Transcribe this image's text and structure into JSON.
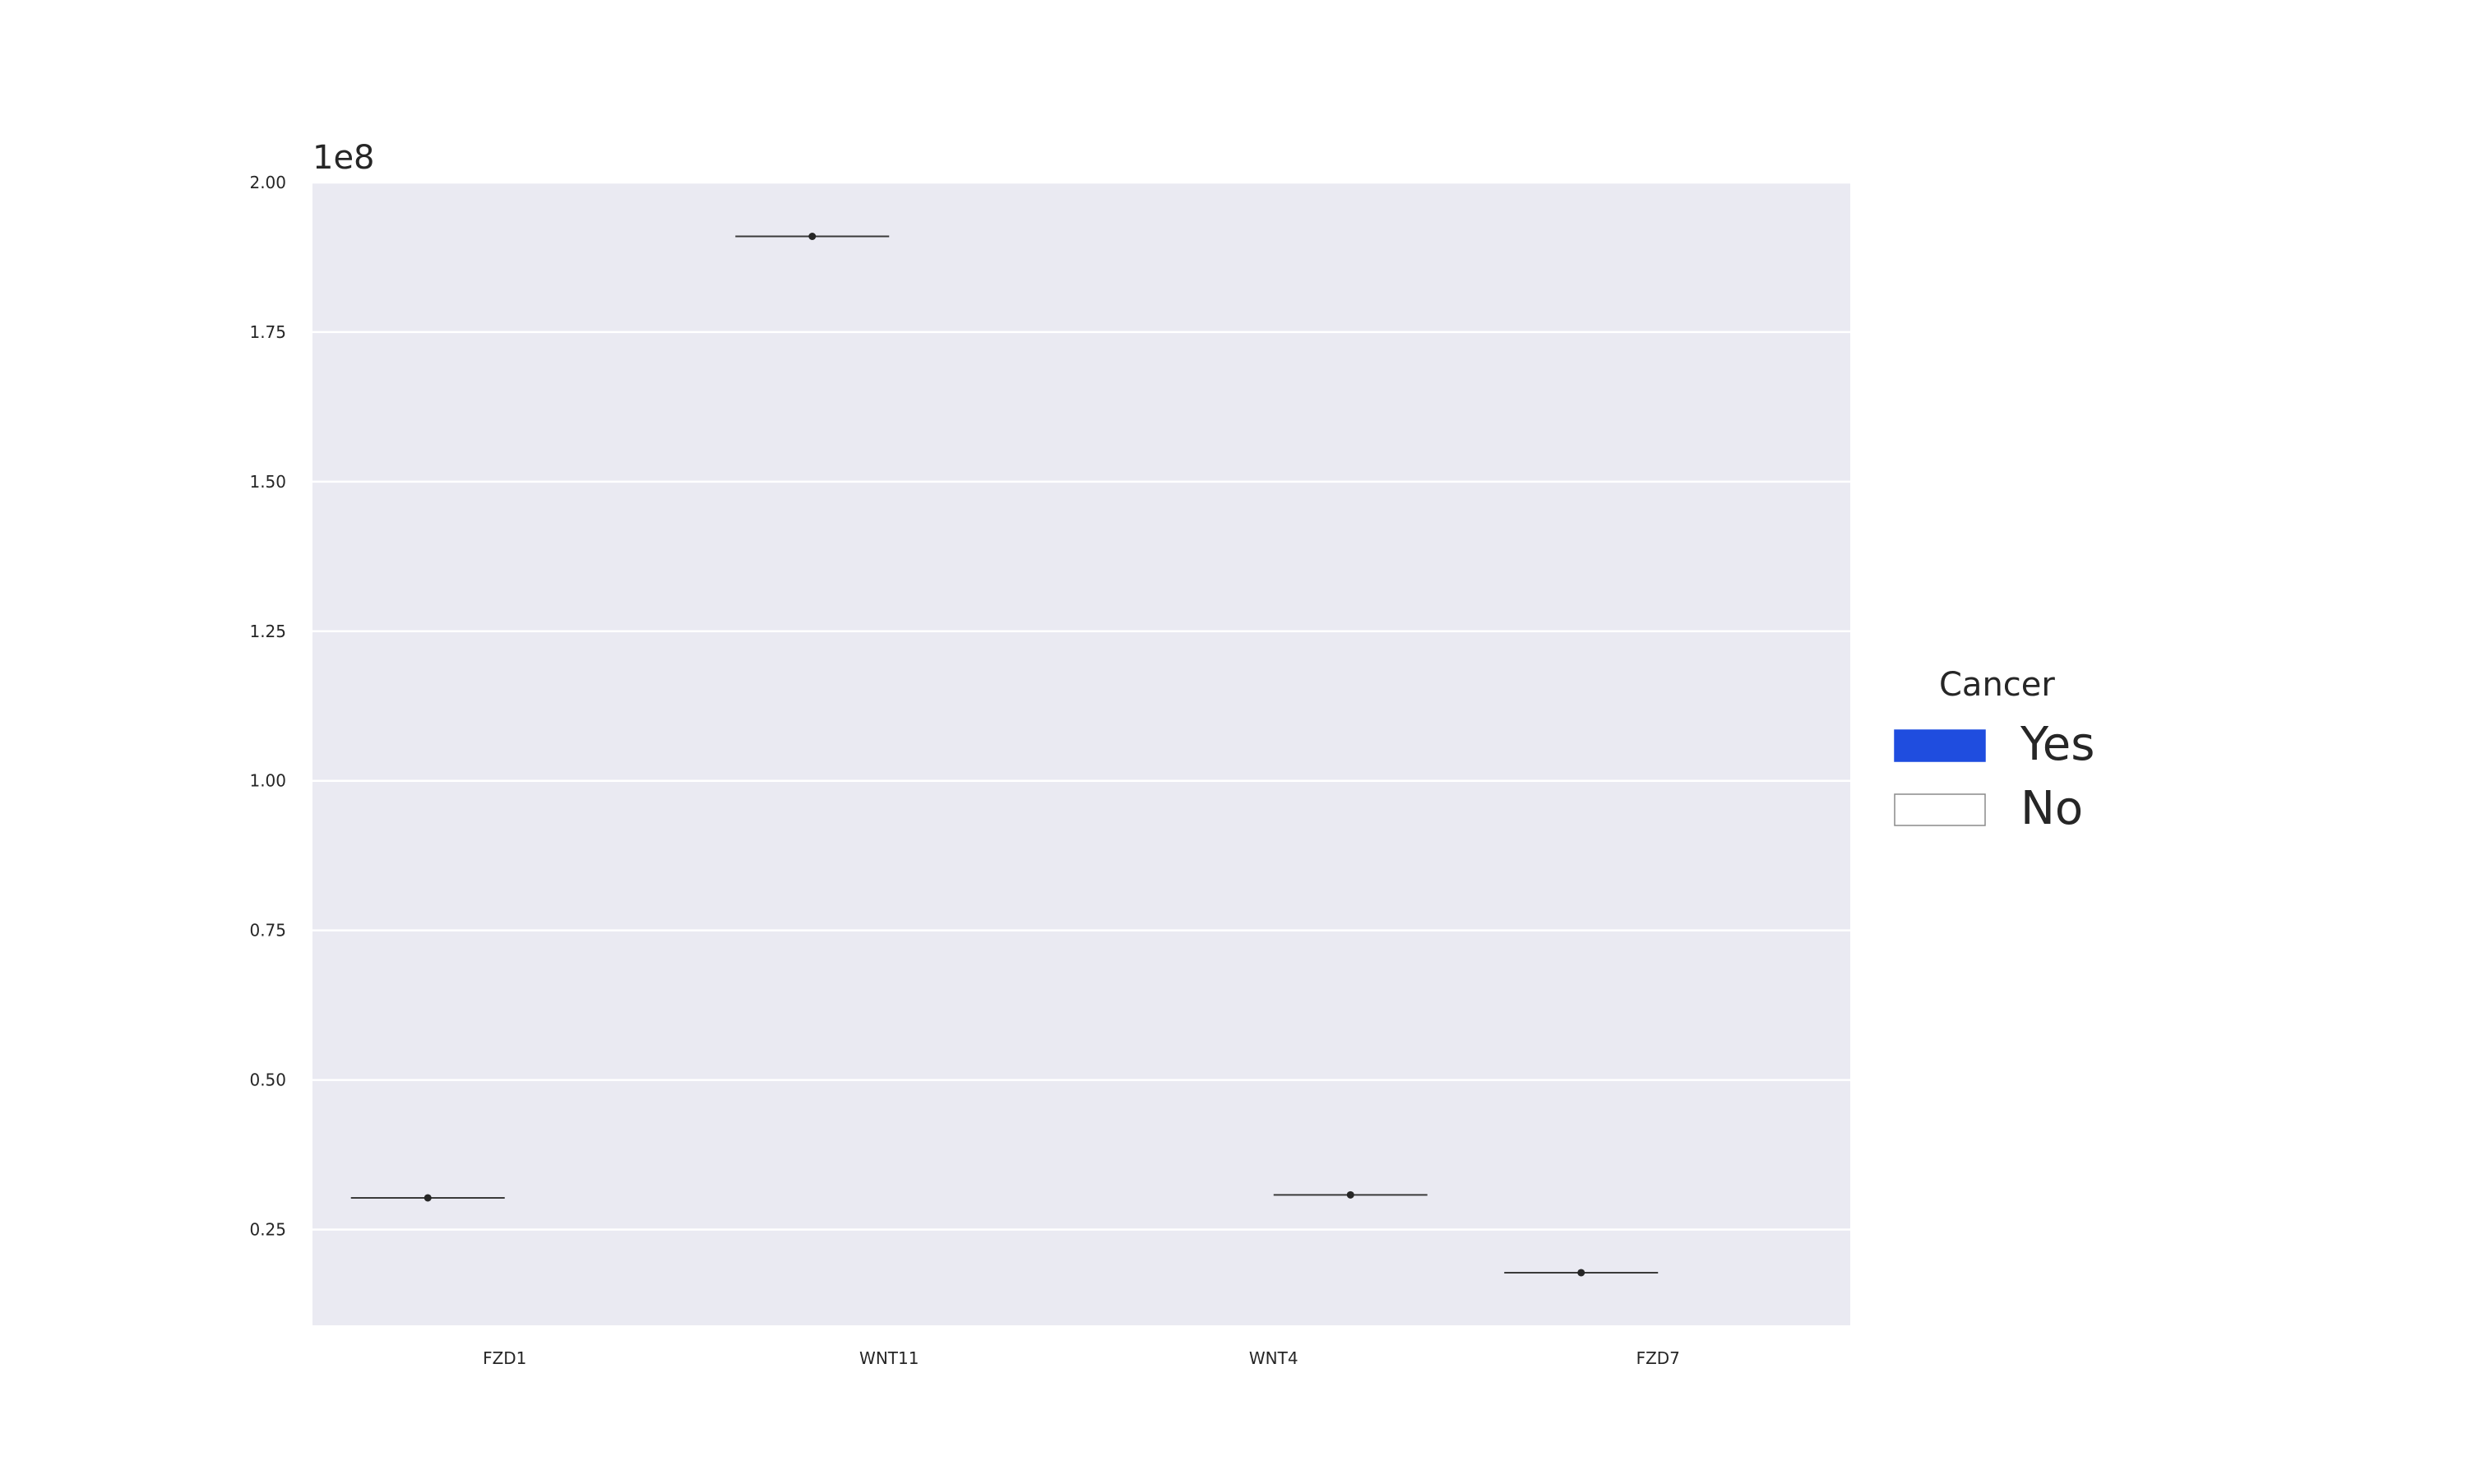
{
  "chart_data": {
    "type": "violin",
    "categories": [
      "FZD1",
      "WNT11",
      "WNT4",
      "FZD7"
    ],
    "offset_label": "1e8",
    "ylim": [
      0.09,
      2.0
    ],
    "yticks": [
      0.25,
      0.5,
      0.75,
      1.0,
      1.25,
      1.5,
      1.75,
      2.0
    ],
    "ytick_labels": [
      "0.25",
      "0.50",
      "0.75",
      "1.00",
      "1.25",
      "1.50",
      "1.75",
      "2.00"
    ],
    "grid": true,
    "legend": {
      "title": "Cancer",
      "placement": "right",
      "entries": [
        {
          "label": "Yes",
          "color": "#1f4ddf"
        },
        {
          "label": "No",
          "color": "#ffffff"
        }
      ]
    },
    "series": [
      {
        "name": "Yes",
        "values": [
          0.303,
          1.91,
          null,
          0.178
        ]
      },
      {
        "name": "No",
        "values": [
          null,
          null,
          0.308,
          null
        ]
      }
    ]
  },
  "colors": {
    "plot_background": "#eaeaf2",
    "grid": "#ffffff",
    "median_line": "#3a3a3a",
    "point": "#262626"
  }
}
